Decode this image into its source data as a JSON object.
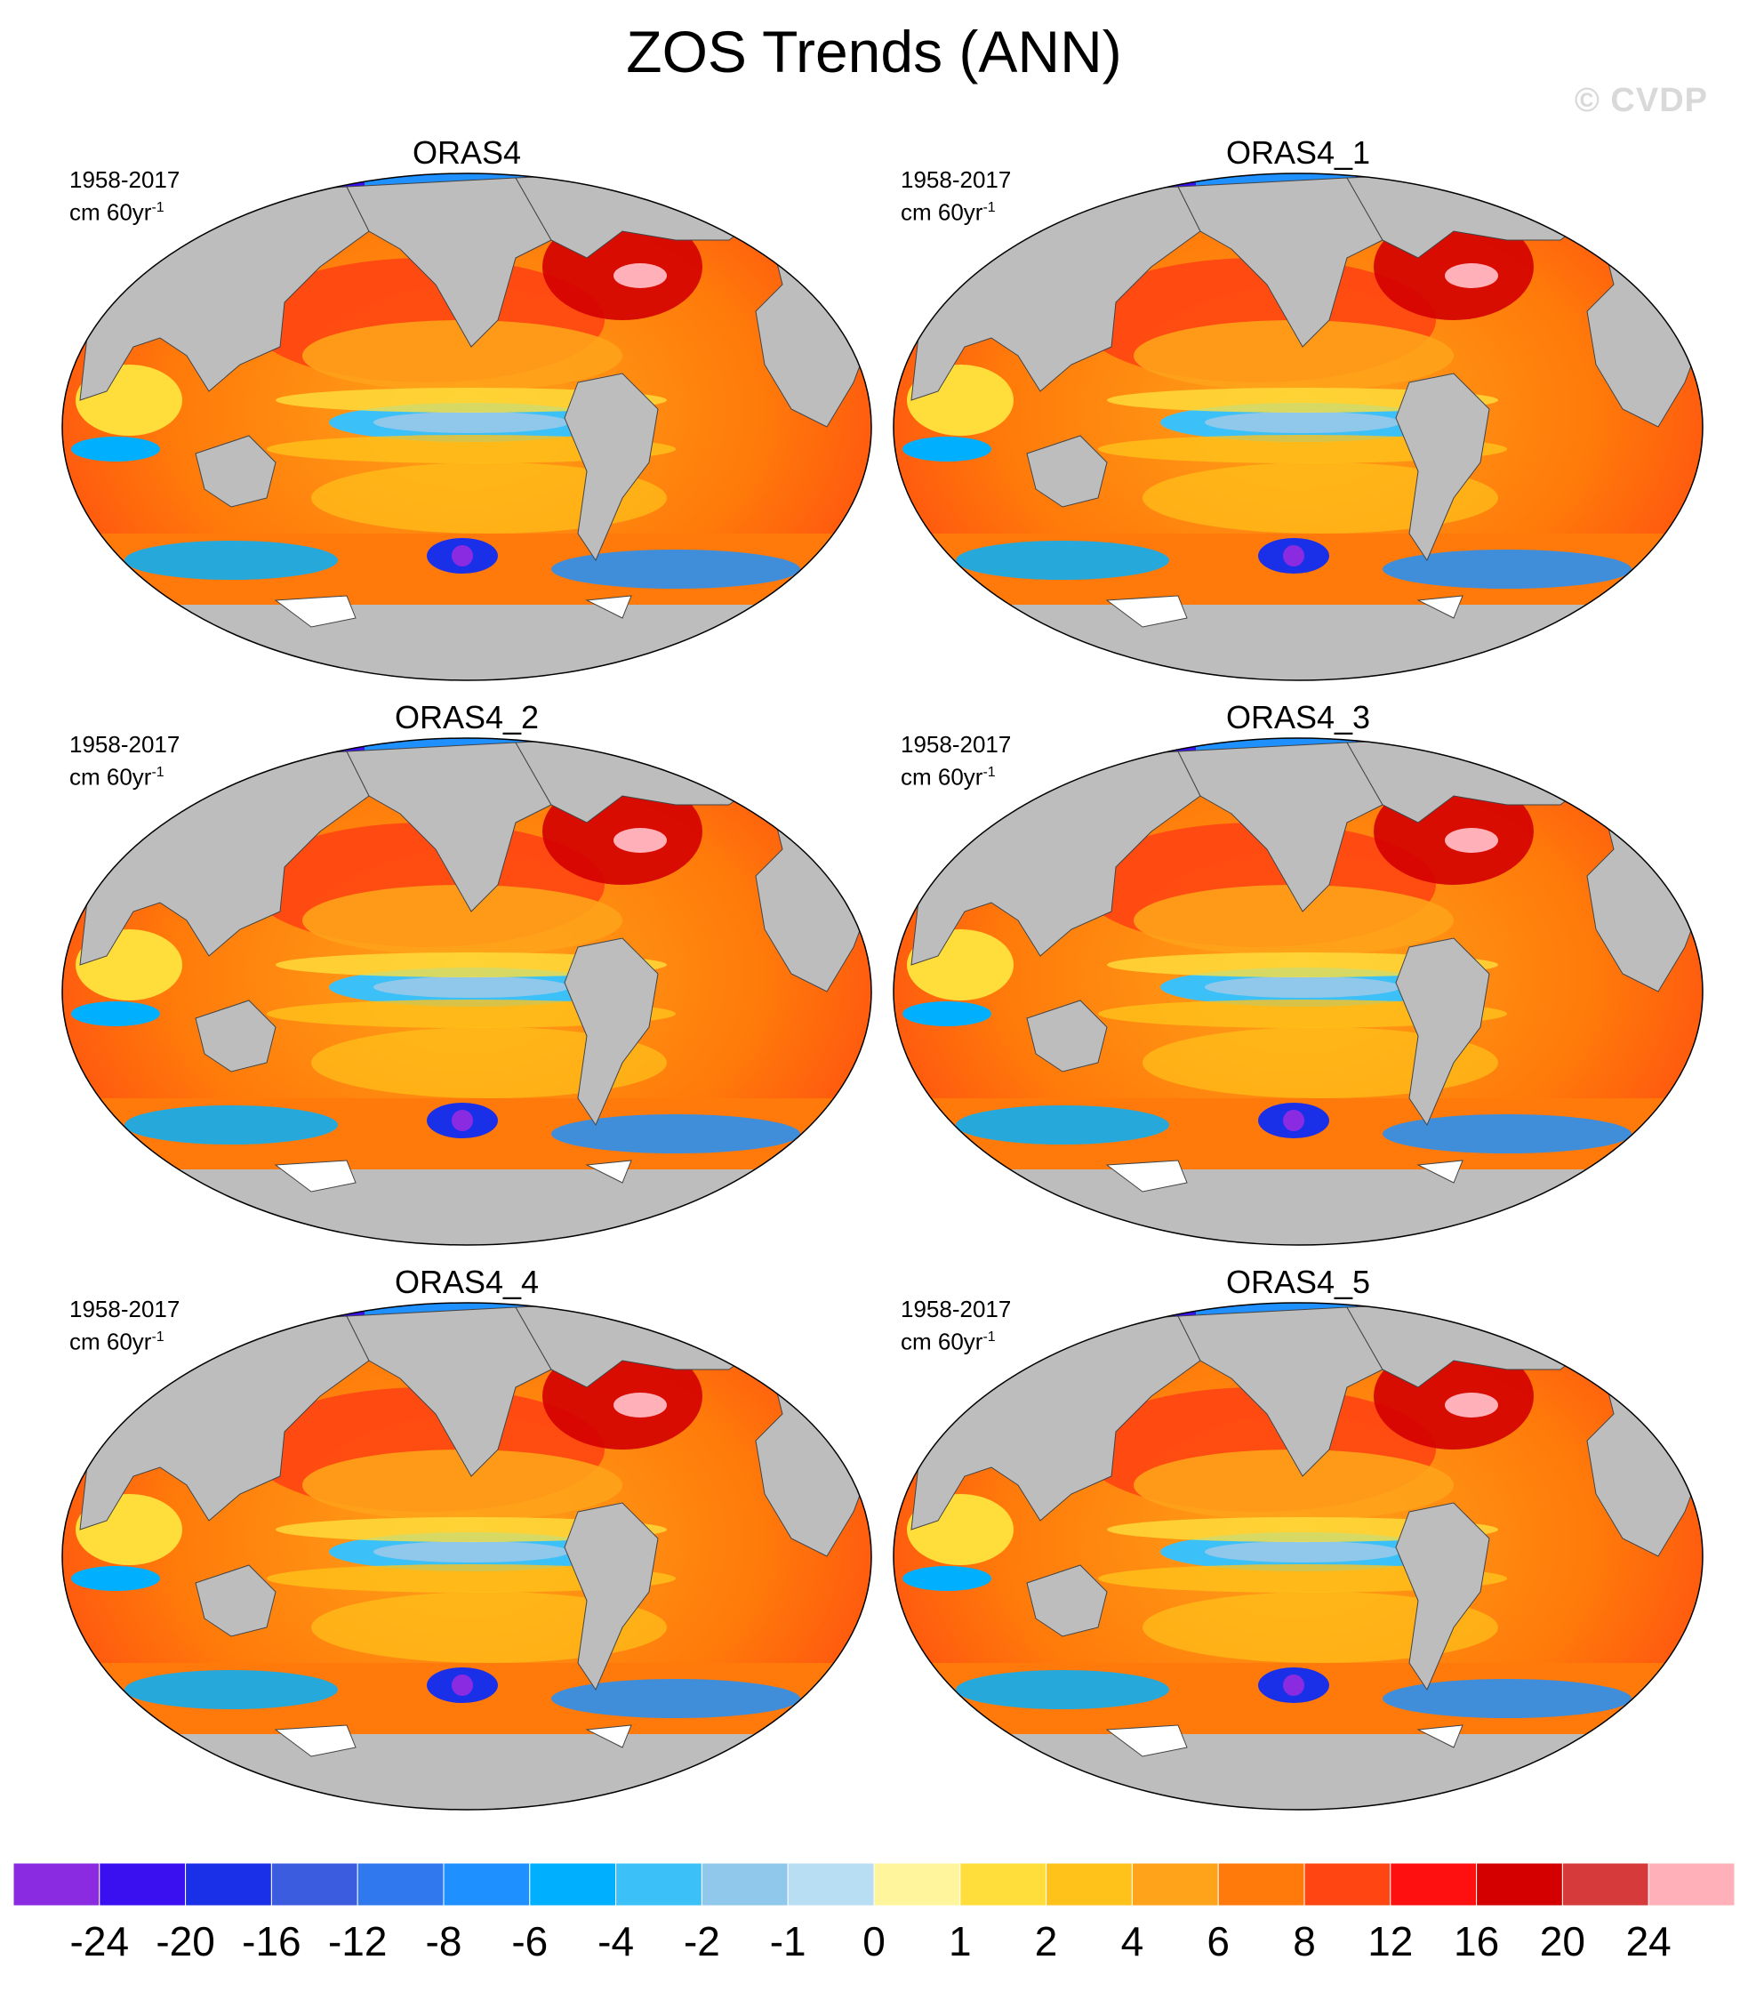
{
  "title": "ZOS Trends (ANN)",
  "watermark": "© CVDP",
  "panels": [
    {
      "name": "ORAS4",
      "period": "1958-2017",
      "units": "cm 60yr",
      "units_sup": "-1"
    },
    {
      "name": "ORAS4_1",
      "period": "1958-2017",
      "units": "cm 60yr",
      "units_sup": "-1"
    },
    {
      "name": "ORAS4_2",
      "period": "1958-2017",
      "units": "cm 60yr",
      "units_sup": "-1"
    },
    {
      "name": "ORAS4_3",
      "period": "1958-2017",
      "units": "cm 60yr",
      "units_sup": "-1"
    },
    {
      "name": "ORAS4_4",
      "period": "1958-2017",
      "units": "cm 60yr",
      "units_sup": "-1"
    },
    {
      "name": "ORAS4_5",
      "period": "1958-2017",
      "units": "cm 60yr",
      "units_sup": "-1"
    }
  ],
  "colorbar": {
    "colors": [
      "#8a2be2",
      "#3a10f0",
      "#1a30e8",
      "#3c5ce0",
      "#2f78ee",
      "#1e90ff",
      "#00b0ff",
      "#3cc0f8",
      "#90c8ec",
      "#b8def4",
      "#fff59d",
      "#ffde3c",
      "#ffc21a",
      "#ffa31a",
      "#ff7a0a",
      "#ff4512",
      "#ff1010",
      "#d40000",
      "#d63a3a",
      "#ffb0b8"
    ],
    "labels": [
      "-24",
      "-20",
      "-16",
      "-12",
      "-8",
      "-6",
      "-4",
      "-2",
      "-1",
      "0",
      "1",
      "2",
      "4",
      "6",
      "8",
      "12",
      "16",
      "20",
      "24"
    ]
  },
  "colors": {
    "land": "#bdbdbd",
    "ocean_base": "#ff6a1a",
    "ice": "#ffffff"
  }
}
